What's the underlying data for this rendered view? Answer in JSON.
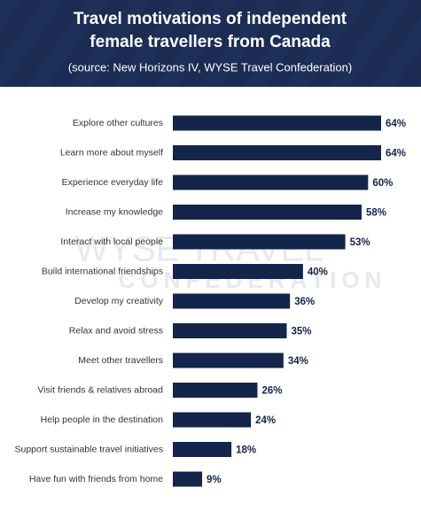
{
  "chart_data": {
    "type": "bar",
    "orientation": "horizontal",
    "title": [
      "Travel motivations of independent",
      "female travellers from Canada"
    ],
    "subtitle": "(source: New Horizons IV, WYSE Travel Confederation)",
    "watermark": [
      "WYSE TRAVEL",
      "CONFEDERATION"
    ],
    "categories": [
      "Explore other cultures",
      "Learn more about myself",
      "Experience everyday life",
      "Increase my knowledge",
      "Interact with local people",
      "Build international friendships",
      "Develop my creativity",
      "Relax and avoid stress",
      "Meet other travellers",
      "Visit friends & relatives abroad",
      "Help people in the destination",
      "Support sustainable travel initiatives",
      "Have fun with friends from home"
    ],
    "values": [
      64,
      64,
      60,
      58,
      53,
      40,
      36,
      35,
      34,
      26,
      24,
      18,
      9
    ],
    "value_labels": [
      "64%",
      "64%",
      "60%",
      "58%",
      "53%",
      "40%",
      "36%",
      "35%",
      "34%",
      "26%",
      "24%",
      "18%",
      "9%"
    ],
    "color": "#14244a"
  }
}
